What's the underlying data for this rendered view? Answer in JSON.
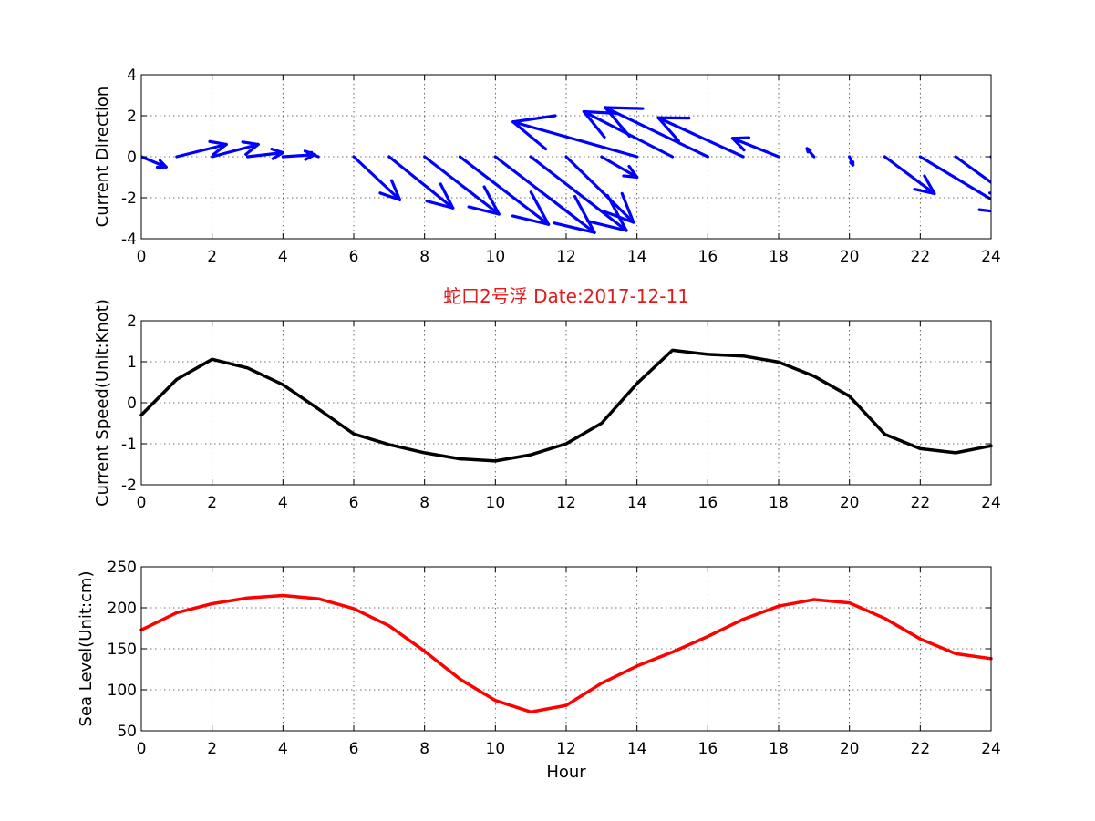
{
  "figure": {
    "title": "蛇口2号浮   Date:2017-12-11",
    "title_color": "#e31a1c",
    "background": "#ffffff"
  },
  "chart_data": [
    {
      "type": "quiver",
      "name": "current-direction",
      "ylabel": "Current Direction",
      "xlabel": "",
      "xlim": [
        0,
        24
      ],
      "ylim": [
        -4,
        4
      ],
      "xticks": [
        0,
        2,
        4,
        6,
        8,
        10,
        12,
        14,
        16,
        18,
        20,
        22,
        24
      ],
      "yticks": [
        -4,
        -2,
        0,
        2,
        4
      ],
      "grid": true,
      "color": "#0000ff",
      "x": [
        0,
        1,
        2,
        3,
        4,
        5,
        6,
        7,
        8,
        9,
        10,
        11,
        12,
        13,
        14,
        15,
        16,
        17,
        18,
        19,
        20,
        21,
        22,
        23,
        24
      ],
      "u": [
        0.7,
        1.4,
        1.3,
        1.0,
        0.9,
        -0.3,
        1.3,
        1.8,
        2.1,
        2.5,
        2.8,
        2.7,
        1.9,
        1.0,
        -3.5,
        -2.5,
        -2.9,
        -2.4,
        -1.3,
        -0.2,
        0.1,
        1.4,
        2.7,
        1.6,
        2.5
      ],
      "v": [
        -0.5,
        0.6,
        0.6,
        0.2,
        0.1,
        0.2,
        -2.1,
        -2.5,
        -2.8,
        -3.3,
        -3.7,
        -3.6,
        -3.2,
        -1.0,
        1.7,
        2.2,
        2.4,
        1.9,
        0.9,
        0.4,
        -0.4,
        -1.8,
        -2.8,
        -2.0,
        -3.0
      ]
    },
    {
      "type": "line",
      "name": "current-speed",
      "ylabel": "Current Speed(Unit:Knot)",
      "xlabel": "",
      "xlim": [
        0,
        24
      ],
      "ylim": [
        -2,
        2
      ],
      "xticks": [
        0,
        2,
        4,
        6,
        8,
        10,
        12,
        14,
        16,
        18,
        20,
        22,
        24
      ],
      "yticks": [
        -2,
        -1,
        0,
        1,
        2
      ],
      "grid": true,
      "color": "#000000",
      "x": [
        0,
        1,
        2,
        3,
        4,
        5,
        6,
        7,
        8,
        9,
        10,
        11,
        12,
        13,
        14,
        15,
        16,
        17,
        18,
        19,
        20,
        21,
        22,
        23,
        24
      ],
      "y": [
        -0.3,
        0.57,
        1.06,
        0.85,
        0.44,
        -0.15,
        -0.76,
        -1.02,
        -1.22,
        -1.37,
        -1.42,
        -1.27,
        -1.0,
        -0.5,
        0.47,
        1.28,
        1.18,
        1.14,
        0.99,
        0.65,
        0.16,
        -0.77,
        -1.12,
        -1.22,
        -1.05
      ]
    },
    {
      "type": "line",
      "name": "sea-level",
      "ylabel": "Sea Level(Unit:cm)",
      "xlabel": "Hour",
      "xlim": [
        0,
        24
      ],
      "ylim": [
        50,
        250
      ],
      "xticks": [
        0,
        2,
        4,
        6,
        8,
        10,
        12,
        14,
        16,
        18,
        20,
        22,
        24
      ],
      "yticks": [
        50,
        100,
        150,
        200,
        250
      ],
      "grid": true,
      "color": "#ff0000",
      "x": [
        0,
        1,
        2,
        3,
        4,
        5,
        6,
        7,
        8,
        9,
        10,
        11,
        12,
        13,
        14,
        15,
        16,
        17,
        18,
        19,
        20,
        21,
        22,
        23,
        24
      ],
      "y": [
        173,
        194,
        205,
        212,
        215,
        211,
        199,
        178,
        147,
        113,
        87,
        73,
        81,
        108,
        129,
        146,
        165,
        186,
        202,
        210,
        206,
        187,
        162,
        144,
        138
      ]
    }
  ]
}
